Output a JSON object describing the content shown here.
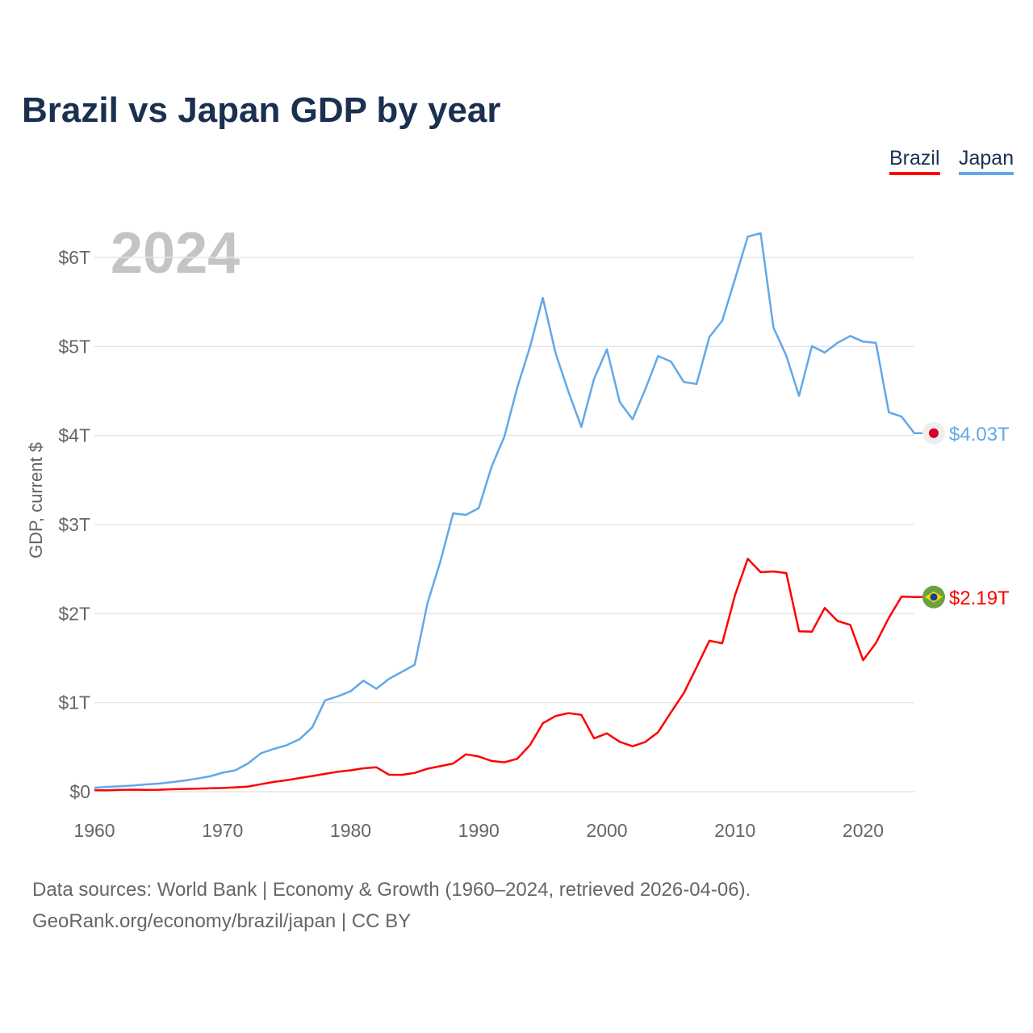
{
  "title": "Brazil vs Japan GDP by year",
  "legend": [
    {
      "label": "Brazil",
      "color": "#ff0000"
    },
    {
      "label": "Japan",
      "color": "#62a8e8"
    }
  ],
  "year_watermark": "2024",
  "footer": {
    "line1": "Data sources: World Bank | Economy & Growth (1960–2024, retrieved 2026-04-06).",
    "line2": "GeoRank.org/economy/brazil/japan | CC BY"
  },
  "chart_data": {
    "type": "line",
    "title": "Brazil vs Japan GDP by year",
    "xlabel": "",
    "ylabel": "GDP, current $",
    "xlim": [
      1960,
      2024
    ],
    "ylim": [
      0,
      6
    ],
    "x_ticks": [
      1960,
      1970,
      1980,
      1990,
      2000,
      2010,
      2020
    ],
    "x_tick_labels": [
      "1960",
      "1970",
      "1980",
      "1990",
      "2000",
      "2010",
      "2020"
    ],
    "y_ticks": [
      0,
      1,
      2,
      3,
      4,
      5,
      6
    ],
    "y_tick_labels": [
      "$0",
      "$1T",
      "$2T",
      "$3T",
      "$4T",
      "$5T",
      "$6T"
    ],
    "grid": true,
    "legend_position": "top-right",
    "unit": "trillion USD",
    "x_start": 1960,
    "series": [
      {
        "name": "Brazil",
        "color": "#ff0000",
        "end_label": "$2.19T",
        "marker": "brazil-flag",
        "values": [
          0.017,
          0.015,
          0.02,
          0.023,
          0.021,
          0.022,
          0.027,
          0.031,
          0.034,
          0.038,
          0.042,
          0.049,
          0.058,
          0.084,
          0.11,
          0.129,
          0.153,
          0.176,
          0.2,
          0.224,
          0.24,
          0.263,
          0.275,
          0.19,
          0.189,
          0.211,
          0.258,
          0.286,
          0.316,
          0.42,
          0.395,
          0.345,
          0.33,
          0.37,
          0.525,
          0.769,
          0.85,
          0.883,
          0.864,
          0.599,
          0.655,
          0.56,
          0.51,
          0.558,
          0.669,
          0.891,
          1.108,
          1.397,
          1.696,
          1.667,
          2.209,
          2.616,
          2.465,
          2.473,
          2.456,
          1.802,
          1.796,
          2.064,
          1.917,
          1.873,
          1.476,
          1.67,
          1.951,
          2.191,
          2.186
        ]
      },
      {
        "name": "Japan",
        "color": "#62a8e8",
        "end_label": "$4.03T",
        "marker": "japan-flag",
        "values": [
          0.044,
          0.054,
          0.061,
          0.069,
          0.082,
          0.091,
          0.106,
          0.124,
          0.147,
          0.172,
          0.213,
          0.24,
          0.318,
          0.432,
          0.48,
          0.522,
          0.587,
          0.722,
          1.026,
          1.071,
          1.128,
          1.247,
          1.156,
          1.268,
          1.346,
          1.427,
          2.121,
          2.584,
          3.126,
          3.109,
          3.186,
          3.649,
          3.989,
          4.537,
          4.998,
          5.546,
          4.923,
          4.492,
          4.098,
          4.636,
          4.968,
          4.375,
          4.183,
          4.519,
          4.893,
          4.831,
          4.601,
          4.579,
          5.106,
          5.289,
          5.759,
          6.234,
          6.272,
          5.212,
          4.897,
          4.445,
          5.004,
          4.931,
          5.041,
          5.118,
          5.055,
          5.04,
          4.262,
          4.213,
          4.026
        ]
      }
    ]
  }
}
